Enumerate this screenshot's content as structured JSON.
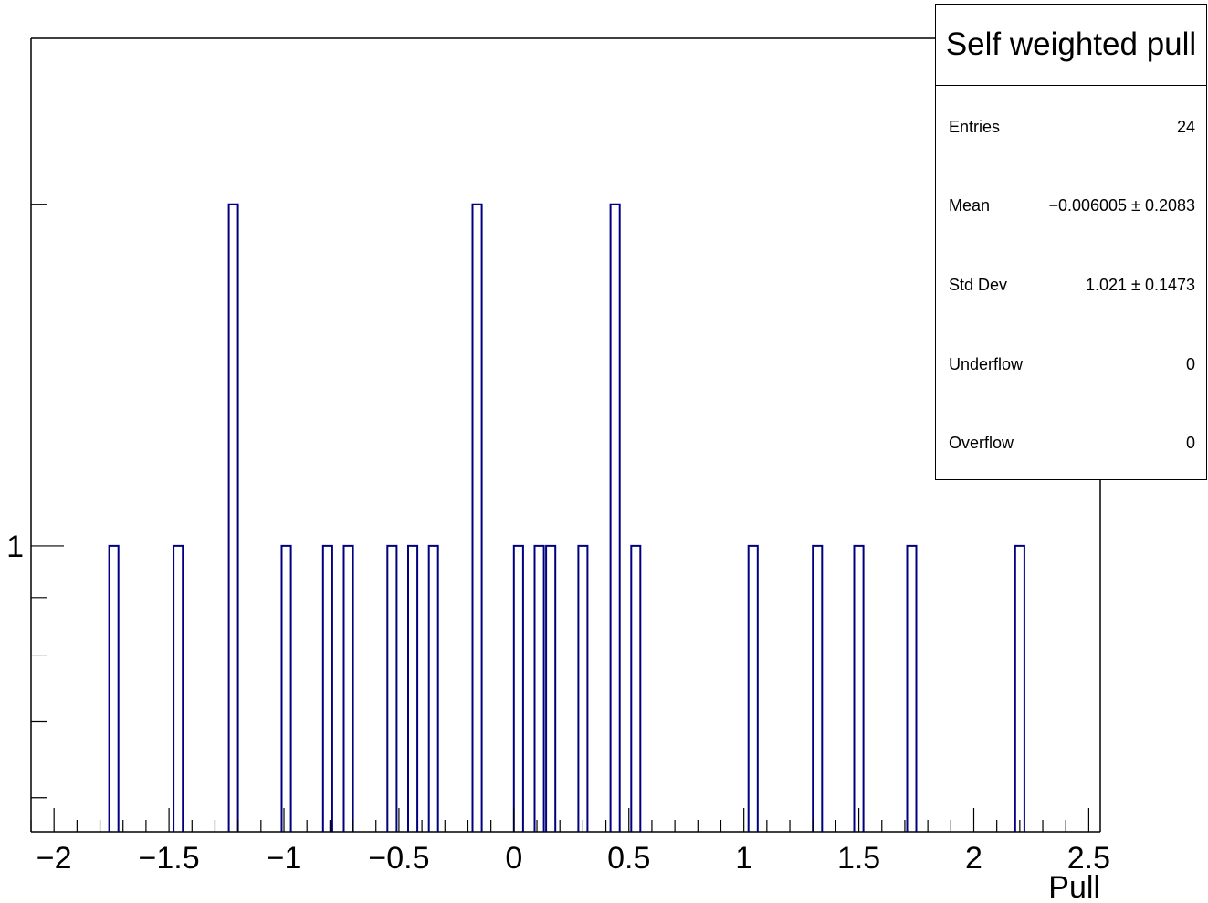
{
  "chart_data": {
    "type": "bar",
    "style": "step-histogram",
    "xlabel": "Pull",
    "ylabel": "",
    "xlim": [
      -2.1,
      2.55
    ],
    "ylim": [
      0.56,
      2.8
    ],
    "y_scale": "log",
    "bin_width": 0.04,
    "x_ticks": [
      "−2",
      "−1.5",
      "−1",
      "−0.5",
      "0",
      "0.5",
      "1",
      "1.5",
      "2",
      "2.5"
    ],
    "x_tick_values": [
      -2,
      -1.5,
      -1,
      -0.5,
      0,
      0.5,
      1,
      1.5,
      2,
      2.5
    ],
    "y_ticks": [
      "1"
    ],
    "y_tick_values": [
      1
    ],
    "grid": false,
    "line_color": "#000080",
    "bins": [
      {
        "x": -1.76,
        "count": 1
      },
      {
        "x": -1.48,
        "count": 1
      },
      {
        "x": -1.24,
        "count": 2
      },
      {
        "x": -1.01,
        "count": 1
      },
      {
        "x": -0.83,
        "count": 1
      },
      {
        "x": -0.74,
        "count": 1
      },
      {
        "x": -0.55,
        "count": 1
      },
      {
        "x": -0.46,
        "count": 1
      },
      {
        "x": -0.37,
        "count": 1
      },
      {
        "x": -0.18,
        "count": 2
      },
      {
        "x": 0.0,
        "count": 1
      },
      {
        "x": 0.09,
        "count": 1
      },
      {
        "x": 0.14,
        "count": 1
      },
      {
        "x": 0.28,
        "count": 1
      },
      {
        "x": 0.42,
        "count": 2
      },
      {
        "x": 0.51,
        "count": 1
      },
      {
        "x": 1.02,
        "count": 1
      },
      {
        "x": 1.3,
        "count": 1
      },
      {
        "x": 1.48,
        "count": 1
      },
      {
        "x": 1.71,
        "count": 1
      },
      {
        "x": 2.18,
        "count": 1
      }
    ]
  },
  "stats": {
    "title": "Self weighted pull",
    "rows": [
      {
        "label": "Entries",
        "value": "24"
      },
      {
        "label": "Mean",
        "value": "−0.006005 ± 0.2083"
      },
      {
        "label": "Std Dev",
        "value": "1.021 ± 0.1473"
      },
      {
        "label": "Underflow",
        "value": "0"
      },
      {
        "label": "Overflow",
        "value": "0"
      }
    ]
  }
}
